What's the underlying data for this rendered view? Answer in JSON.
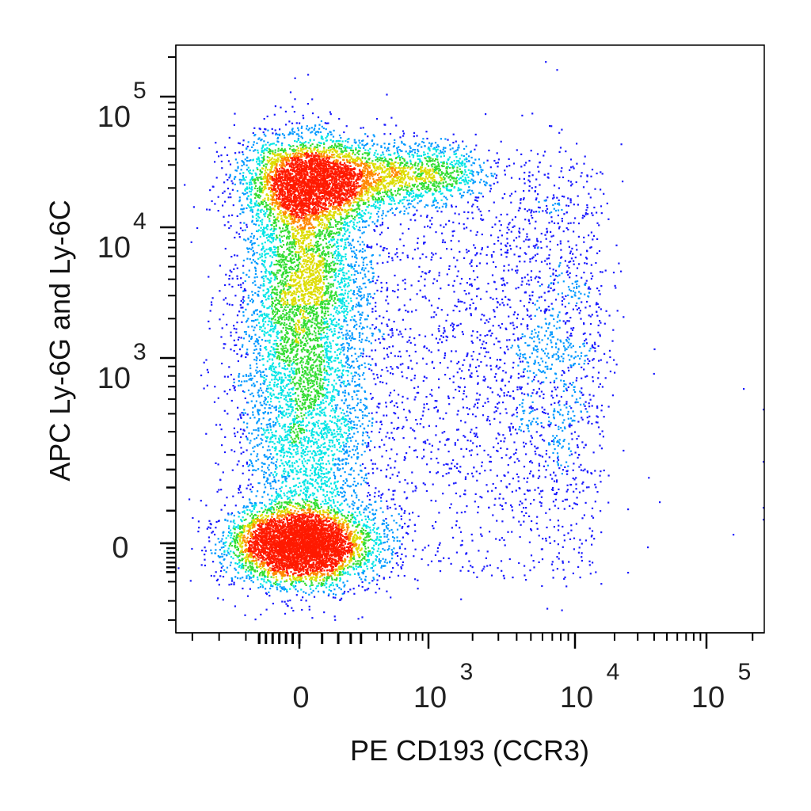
{
  "chart_data": {
    "type": "scatter",
    "subtype": "flow-cytometry-density-dot-plot",
    "title": "",
    "xlabel": "PE CD193 (CCR3)",
    "ylabel": "APC  Ly-6G and Ly-6C",
    "x_scale": "biexponential",
    "y_scale": "biexponential",
    "x_ticks": [
      {
        "value": 0,
        "base": "0",
        "exp": ""
      },
      {
        "value": 1000,
        "base": "10",
        "exp": "3"
      },
      {
        "value": 10000,
        "base": "10",
        "exp": "4"
      },
      {
        "value": 100000,
        "base": "10",
        "exp": "5"
      }
    ],
    "y_ticks": [
      {
        "value": 0,
        "base": "0",
        "exp": ""
      },
      {
        "value": 1000,
        "base": "10",
        "exp": "3"
      },
      {
        "value": 10000,
        "base": "10",
        "exp": "4"
      },
      {
        "value": 100000,
        "base": "10",
        "exp": "5"
      }
    ],
    "xlim": [
      -900,
      230000
    ],
    "ylim": [
      -900,
      230000
    ],
    "grid": false,
    "legend": "none",
    "color_scale": [
      "#1a1aff",
      "#0099ff",
      "#00e5e5",
      "#33dd33",
      "#dddd00",
      "#ff8800",
      "#ff1a00"
    ],
    "populations": [
      {
        "x_center": 10,
        "y_center": 22000,
        "density": "very high"
      },
      {
        "x_center": 10,
        "y_center": 0,
        "density": "very high"
      },
      {
        "x_center": 5000,
        "y_center": 900,
        "density": "low"
      }
    ]
  }
}
